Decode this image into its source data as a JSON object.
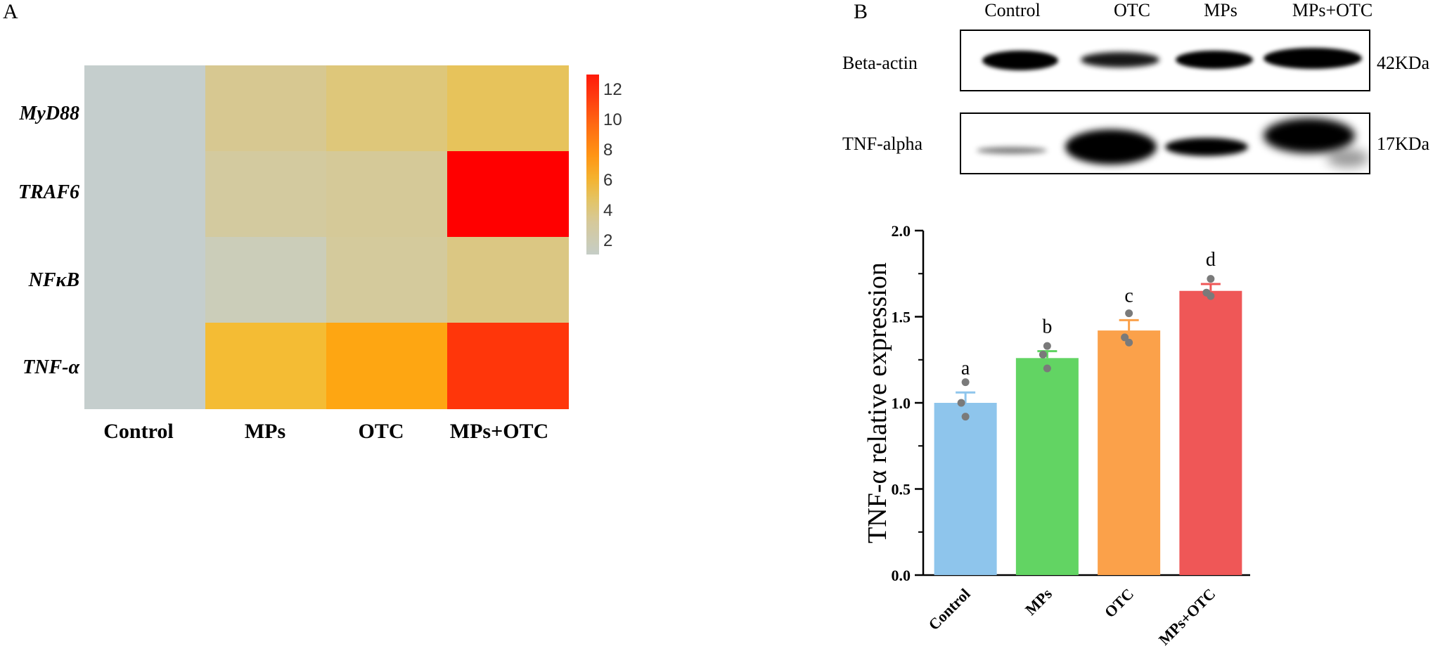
{
  "panel_a": {
    "letter": "A",
    "heatmap": {
      "rows": [
        "MyD88",
        "TRAF6",
        "NFκB",
        "TNF-α"
      ],
      "columns": [
        "Control",
        "MPs",
        "OTC",
        "MPs+OTC"
      ],
      "values": [
        [
          1.0,
          3.0,
          4.0,
          5.0
        ],
        [
          1.0,
          2.6,
          2.8,
          13.0
        ],
        [
          1.0,
          1.8,
          2.7,
          3.6
        ],
        [
          1.0,
          6.0,
          7.6,
          12.0
        ]
      ],
      "colorbar": {
        "min": 1,
        "max": 13,
        "ticks": [
          "12",
          "10",
          "8",
          "6",
          "4",
          "2"
        ]
      }
    }
  },
  "panel_b": {
    "letter": "B",
    "blot": {
      "lanes": [
        "Control",
        "OTC",
        "MPs",
        "MPs+OTC"
      ],
      "proteins": [
        {
          "name": "Beta-actin",
          "size": "42KDa"
        },
        {
          "name": "TNF-alpha",
          "size": "17KDa"
        }
      ]
    },
    "chart_data": {
      "type": "bar",
      "categories": [
        "Control",
        "MPs",
        "OTC",
        "MPs+OTC"
      ],
      "values": [
        1.0,
        1.26,
        1.42,
        1.65
      ],
      "errors": [
        0.06,
        0.04,
        0.06,
        0.04
      ],
      "points": [
        [
          1.12,
          1.0,
          0.92
        ],
        [
          1.33,
          1.28,
          1.2
        ],
        [
          1.52,
          1.38,
          1.35
        ],
        [
          1.72,
          1.64,
          1.62
        ]
      ],
      "significance": [
        "a",
        "b",
        "c",
        "d"
      ],
      "colors": [
        "#8ec5ec",
        "#62d463",
        "#fba14a",
        "#ef5757"
      ],
      "ylabel": "TNF-α relative expression",
      "xlabel": "",
      "ylim": [
        0,
        2.0
      ],
      "yticks": [
        "0.0",
        "0.5",
        "1.0",
        "1.5",
        "2.0"
      ]
    }
  }
}
